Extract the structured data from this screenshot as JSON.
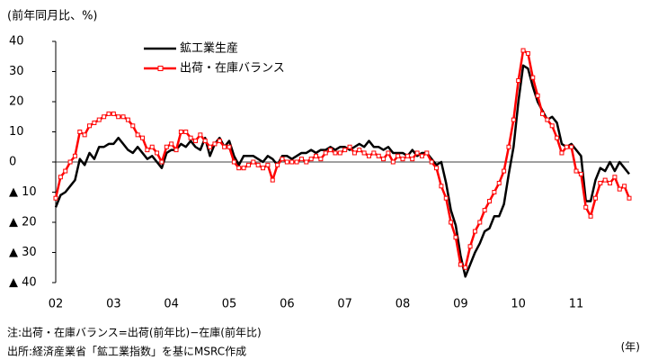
{
  "chart_data": {
    "type": "line",
    "y_label": "(前年同月比、%)",
    "x_label": "(年)",
    "notes": [
      "注:出荷・在庫バランス=出荷(前年比)−在庫(前年比)",
      "出所:経済産業省「鉱工業指数」を基にMSRC作成"
    ],
    "categories": [
      "02",
      null,
      null,
      null,
      null,
      null,
      null,
      null,
      null,
      null,
      null,
      null,
      "03",
      null,
      null,
      null,
      null,
      null,
      null,
      null,
      null,
      null,
      null,
      null,
      "04",
      null,
      null,
      null,
      null,
      null,
      null,
      null,
      null,
      null,
      null,
      null,
      "05",
      null,
      null,
      null,
      null,
      null,
      null,
      null,
      null,
      null,
      null,
      null,
      "06",
      null,
      null,
      null,
      null,
      null,
      null,
      null,
      null,
      null,
      null,
      null,
      "07",
      null,
      null,
      null,
      null,
      null,
      null,
      null,
      null,
      null,
      null,
      null,
      "08",
      null,
      null,
      null,
      null,
      null,
      null,
      null,
      null,
      null,
      null,
      null,
      "09",
      null,
      null,
      null,
      null,
      null,
      null,
      null,
      null,
      null,
      null,
      null,
      "10",
      null,
      null,
      null,
      null,
      null,
      null,
      null,
      null,
      null,
      null,
      null,
      "11",
      null,
      null,
      null,
      null,
      null,
      null,
      null,
      null,
      null,
      null,
      null
    ],
    "series": [
      {
        "name": "鉱工業生産",
        "color": "#000000",
        "marker": false,
        "values": [
          -15,
          -11,
          -10,
          -8,
          -6,
          1,
          -1,
          3,
          1,
          5,
          5,
          6,
          6,
          8,
          6,
          4,
          3,
          5,
          3,
          1,
          2,
          0,
          -2,
          3,
          4,
          4,
          6,
          5,
          7,
          5,
          4,
          8,
          2,
          6,
          8,
          5,
          7,
          2,
          -1,
          2,
          2,
          2,
          1,
          0,
          2,
          1,
          -1,
          2,
          2,
          1,
          2,
          3,
          3,
          4,
          3,
          4,
          4,
          5,
          4,
          5,
          5,
          4,
          5,
          6,
          5,
          7,
          5,
          5,
          4,
          5,
          3,
          3,
          3,
          2,
          4,
          2,
          3,
          3,
          1,
          -1,
          0,
          -7,
          -16,
          -21,
          -31,
          -38,
          -34,
          -30,
          -27,
          -23,
          -22,
          -18,
          -18,
          -14,
          -4,
          5,
          20,
          32,
          31,
          25,
          20,
          17,
          14,
          15,
          13,
          6,
          5,
          6,
          4,
          2,
          -13,
          -13,
          -6,
          -2,
          -3,
          0,
          -3,
          0,
          -2,
          -4
        ]
      },
      {
        "name": "出荷・在庫バランス",
        "color": "#ff0000",
        "marker": true,
        "values": [
          -12,
          -5,
          -3,
          0,
          2,
          10,
          9,
          12,
          13,
          14,
          15,
          16,
          16,
          15,
          15,
          14,
          12,
          9,
          8,
          4,
          5,
          3,
          0,
          5,
          6,
          4,
          10,
          10,
          8,
          7,
          9,
          7,
          5,
          6,
          7,
          5,
          5,
          0,
          -2,
          -2,
          -1,
          0,
          -1,
          -2,
          -1,
          -6,
          -1,
          1,
          0,
          0,
          0,
          1,
          0,
          1,
          2,
          1,
          3,
          4,
          3,
          3,
          4,
          5,
          3,
          4,
          3,
          2,
          3,
          2,
          1,
          3,
          0,
          2,
          1,
          2,
          1,
          3,
          2,
          3,
          0,
          -2,
          -8,
          -12,
          -20,
          -25,
          -34,
          -35,
          -28,
          -23,
          -20,
          -16,
          -13,
          -10,
          -7,
          -3,
          5,
          14,
          27,
          37,
          36,
          28,
          22,
          16,
          14,
          12,
          8,
          3,
          5,
          5,
          -3,
          -4,
          -15,
          -18,
          -12,
          -7,
          -6,
          -7,
          -5,
          -9,
          -8,
          -12
        ]
      }
    ],
    "ylim": [
      -40,
      40
    ],
    "yticks": [
      {
        "value": -40,
        "label": "▲ 40"
      },
      {
        "value": -30,
        "label": "▲ 30"
      },
      {
        "value": -20,
        "label": "▲ 20"
      },
      {
        "value": -10,
        "label": "▲ 10"
      },
      0,
      10,
      20,
      30,
      40
    ]
  }
}
